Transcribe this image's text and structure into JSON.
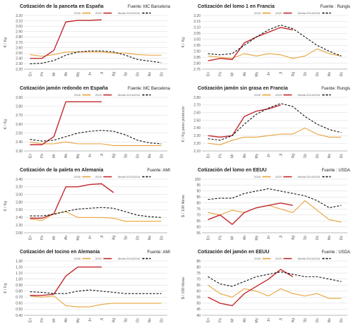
{
  "legend_labels": [
    "2018",
    "2019",
    "Media 2014/2018"
  ],
  "colors": {
    "s2018": "#e8a23a",
    "s2019": "#c1272d",
    "media": "#111111",
    "grid": "#d8d8d8",
    "axis": "#8a8a8a"
  },
  "months": [
    "En",
    "Fb",
    "Mr",
    "Ab",
    "My",
    "Jn",
    "Jl",
    "Ag",
    "Sp",
    "Oc",
    "Nv",
    "Dc"
  ],
  "chart_data": [
    {
      "type": "line",
      "title": "Cotización de la panceta en España",
      "source": "Fuente: MC Barcelona",
      "ylabel": "€ / Kg",
      "ylim": [
        2.2,
        3.2
      ],
      "yticks": [
        2.2,
        2.3,
        2.4,
        2.5,
        2.6,
        2.7,
        2.8,
        2.9,
        3.0,
        3.1,
        3.2
      ],
      "ytick_labels": [
        "2.20",
        "2.30",
        "2.40",
        "2.50",
        "2.60",
        "2.70",
        "2.80",
        "2.90",
        "3.00",
        "3.10",
        "3.20"
      ],
      "categories": [
        "En",
        "Fb",
        "Mr",
        "Ab",
        "My",
        "Jn",
        "Jl",
        "Ag",
        "Sp",
        "Oc",
        "Nv",
        "Dc"
      ],
      "series": [
        {
          "name": "2018",
          "values": [
            2.47,
            2.44,
            2.47,
            2.52,
            2.52,
            2.52,
            2.52,
            2.5,
            2.5,
            2.47,
            2.46,
            2.46
          ]
        },
        {
          "name": "2019",
          "values": [
            2.4,
            2.4,
            2.55,
            3.08,
            3.11,
            3.11,
            3.12,
            null,
            null,
            null,
            null,
            null
          ]
        },
        {
          "name": "Media 2014/2018",
          "values": [
            2.3,
            2.31,
            2.36,
            2.46,
            2.52,
            2.54,
            2.54,
            2.52,
            2.46,
            2.38,
            2.35,
            2.32
          ]
        }
      ]
    },
    {
      "type": "line",
      "title": "Cotización del lomo 1 en Francia",
      "source": "Fuente : Rungis",
      "ylabel": "€ / Kg",
      "ylim": [
        2.75,
        3.2
      ],
      "yticks": [
        2.75,
        2.8,
        2.85,
        2.9,
        2.95,
        3.0,
        3.05,
        3.1,
        3.15,
        3.2
      ],
      "ytick_labels": [
        "2.75",
        "2.80",
        "2.85",
        "2.90",
        "2.95",
        "3.00",
        "3.05",
        "3.10",
        "3.15",
        "3.20"
      ],
      "categories": [
        "En",
        "Fb",
        "Mr",
        "Ab",
        "My",
        "Jn",
        "Jl",
        "Ag",
        "Sp",
        "Oc",
        "Nv",
        "Dc"
      ],
      "series": [
        {
          "name": "2018",
          "values": [
            2.86,
            2.85,
            2.84,
            2.88,
            2.86,
            2.88,
            2.87,
            2.84,
            2.86,
            2.92,
            2.88,
            2.86
          ]
        },
        {
          "name": "2019",
          "values": [
            2.82,
            2.84,
            2.83,
            2.97,
            3.02,
            3.06,
            3.1,
            3.08,
            null,
            null,
            null,
            null
          ]
        },
        {
          "name": "Media 2014/2018",
          "values": [
            2.88,
            2.87,
            2.88,
            2.95,
            3.02,
            3.08,
            3.12,
            3.09,
            3.02,
            2.95,
            2.9,
            2.86
          ]
        }
      ]
    },
    {
      "type": "line",
      "title": "Cotización jamón redondo en España",
      "source": "Fuente: MC Barcelona",
      "ylabel": "€ / Kg",
      "ylim": [
        2.3,
        2.9
      ],
      "yticks": [
        2.3,
        2.4,
        2.5,
        2.6,
        2.7,
        2.8,
        2.9
      ],
      "ytick_labels": [
        "2.30",
        "2.40",
        "2.50",
        "2.60",
        "2.70",
        "2.80",
        "2.90"
      ],
      "categories": [
        "En",
        "Fb",
        "Mr",
        "Ab",
        "My",
        "Jn",
        "Jl",
        "Ag",
        "Sp",
        "Oc",
        "Nv",
        "Dc"
      ],
      "series": [
        {
          "name": "2018",
          "values": [
            2.4,
            2.38,
            2.38,
            2.4,
            2.38,
            2.38,
            2.38,
            2.36,
            2.36,
            2.36,
            2.36,
            2.36
          ]
        },
        {
          "name": "2019",
          "values": [
            2.37,
            2.37,
            2.46,
            2.85,
            2.85,
            2.85,
            2.85,
            null,
            null,
            null,
            null,
            null
          ]
        },
        {
          "name": "Media 2014/2018",
          "values": [
            2.43,
            2.41,
            2.42,
            2.46,
            2.5,
            2.52,
            2.53,
            2.52,
            2.48,
            2.42,
            2.39,
            2.38
          ]
        }
      ]
    },
    {
      "type": "line",
      "title": "Cotización jamón sin grasa en Francia",
      "source": "Fuente: Rungis",
      "ylabel": "€ / Kg peso producto",
      "ylim": [
        2.1,
        2.8
      ],
      "yticks": [
        2.1,
        2.2,
        2.3,
        2.4,
        2.5,
        2.6,
        2.7,
        2.8
      ],
      "ytick_labels": [
        "2.10",
        "2.20",
        "2.30",
        "2.40",
        "2.50",
        "2.60",
        "2.70",
        "2.80"
      ],
      "categories": [
        "En",
        "Fb",
        "Mr",
        "Ab",
        "My",
        "Jn",
        "Jl",
        "Ag",
        "Sp",
        "Oc",
        "Nv",
        "Dc"
      ],
      "series": [
        {
          "name": "2018",
          "values": [
            2.2,
            2.18,
            2.24,
            2.28,
            2.28,
            2.3,
            2.32,
            2.32,
            2.4,
            2.32,
            2.28,
            2.28
          ]
        },
        {
          "name": "2019",
          "values": [
            2.3,
            2.28,
            2.3,
            2.55,
            2.62,
            2.65,
            2.7,
            null,
            null,
            null,
            null,
            null
          ]
        },
        {
          "name": "Media 2014/2018",
          "values": [
            2.26,
            2.24,
            2.3,
            2.45,
            2.58,
            2.66,
            2.72,
            2.68,
            2.55,
            2.45,
            2.38,
            2.34
          ]
        }
      ]
    },
    {
      "type": "line",
      "title": "Cotización de la paleta en Alemania",
      "source": "Fuente: AMI",
      "ylabel": "€ / Kg",
      "ylim": [
        2.0,
        3.4
      ],
      "yticks": [
        2.0,
        2.2,
        2.4,
        2.6,
        2.8,
        3.0,
        3.2,
        3.4
      ],
      "ytick_labels": [
        "2.00",
        "2.20",
        "2.40",
        "2.60",
        "2.80",
        "3.00",
        "3.20",
        "3.40"
      ],
      "categories": [
        "En",
        "Fb",
        "Mr",
        "Ab",
        "My",
        "Jn",
        "Jl",
        "Ag",
        "Sp",
        "Oc",
        "Nv",
        "Dc"
      ],
      "series": [
        {
          "name": "2018",
          "values": [
            2.36,
            2.32,
            2.5,
            2.55,
            2.4,
            2.4,
            2.4,
            2.38,
            2.3,
            2.3,
            2.3,
            2.3
          ]
        },
        {
          "name": "2019",
          "values": [
            2.38,
            2.38,
            2.5,
            3.2,
            3.2,
            3.26,
            3.28,
            3.05,
            null,
            null,
            null,
            null
          ]
        },
        {
          "name": "Media 2014/2018",
          "values": [
            2.44,
            2.44,
            2.48,
            2.56,
            2.62,
            2.64,
            2.66,
            2.64,
            2.55,
            2.46,
            2.42,
            2.4
          ]
        }
      ]
    },
    {
      "type": "line",
      "title": "Cotización del lomo en EEUU",
      "source": "Fuente : USDA",
      "ylabel": "$ / 100 libras",
      "ylim": [
        55,
        100
      ],
      "yticks": [
        55,
        60,
        65,
        70,
        75,
        80,
        85,
        90,
        95,
        100
      ],
      "ytick_labels": [
        "55",
        "60",
        "65",
        "70",
        "75",
        "80",
        "85",
        "90",
        "95",
        "100"
      ],
      "categories": [
        "En",
        "Fb",
        "Mr",
        "Ab",
        "My",
        "Jn",
        "Jl",
        "Ag",
        "Sp",
        "Oc",
        "Nv",
        "Dc"
      ],
      "series": [
        {
          "name": "2018",
          "values": [
            72,
            70,
            74,
            72,
            76,
            78,
            75,
            72,
            82,
            74,
            66,
            64
          ]
        },
        {
          "name": "2019",
          "values": [
            66,
            70,
            62,
            72,
            76,
            78,
            80,
            78,
            null,
            null,
            null,
            null
          ]
        },
        {
          "name": "Media 2014/2018",
          "values": [
            83,
            84,
            84,
            88,
            90,
            92,
            90,
            88,
            86,
            82,
            76,
            78
          ]
        }
      ]
    },
    {
      "type": "line",
      "title": "Cotización del tocino en Alemania",
      "source": "Fuente: AMI",
      "ylabel": "€ / Kg",
      "ylim": [
        0.4,
        1.3
      ],
      "yticks": [
        0.4,
        0.5,
        0.6,
        0.7,
        0.8,
        0.9,
        1.0,
        1.1,
        1.2,
        1.3
      ],
      "ytick_labels": [
        "0.40",
        "0.50",
        "0.60",
        "0.70",
        "0.80",
        "0.90",
        "1.00",
        "1.10",
        "1.20",
        "1.30"
      ],
      "categories": [
        "En",
        "Fb",
        "Mr",
        "Ab",
        "My",
        "Jn",
        "Jl",
        "Ag",
        "Sp",
        "Oc",
        "Nv",
        "Dc"
      ],
      "series": [
        {
          "name": "2018",
          "values": [
            0.72,
            0.7,
            0.72,
            0.56,
            0.54,
            0.54,
            0.58,
            0.6,
            0.6,
            0.6,
            0.6,
            0.6
          ]
        },
        {
          "name": "2019",
          "values": [
            0.73,
            0.73,
            0.75,
            1.05,
            1.2,
            1.2,
            1.2,
            null,
            null,
            null,
            null,
            null
          ]
        },
        {
          "name": "Media 2014/2018",
          "values": [
            0.79,
            0.78,
            0.76,
            0.76,
            0.8,
            0.82,
            0.8,
            0.78,
            0.76,
            0.76,
            0.76,
            0.76
          ]
        }
      ]
    },
    {
      "type": "line",
      "title": "Cotización del jamón en EEUU",
      "source": "Fuente : USDA",
      "ylabel": "$ / 100 libras",
      "ylim": [
        40,
        85
      ],
      "yticks": [
        40,
        45,
        50,
        55,
        60,
        65,
        70,
        75,
        80,
        85
      ],
      "ytick_labels": [
        "40",
        "45",
        "50",
        "55",
        "60",
        "65",
        "70",
        "75",
        "80",
        "85"
      ],
      "categories": [
        "En",
        "Fb",
        "Mr",
        "Ab",
        "My",
        "Jn",
        "Jl",
        "Ag",
        "Sp",
        "Oc",
        "Nv",
        "Dc"
      ],
      "series": [
        {
          "name": "2018",
          "values": [
            65,
            58,
            55,
            62,
            60,
            56,
            62,
            58,
            56,
            58,
            54,
            54
          ]
        },
        {
          "name": "2019",
          "values": [
            55,
            50,
            48,
            58,
            64,
            70,
            78,
            72,
            null,
            null,
            null,
            null
          ]
        },
        {
          "name": "Media 2014/2018",
          "values": [
            72,
            66,
            64,
            68,
            72,
            74,
            76,
            74,
            72,
            72,
            70,
            68
          ]
        }
      ]
    }
  ]
}
